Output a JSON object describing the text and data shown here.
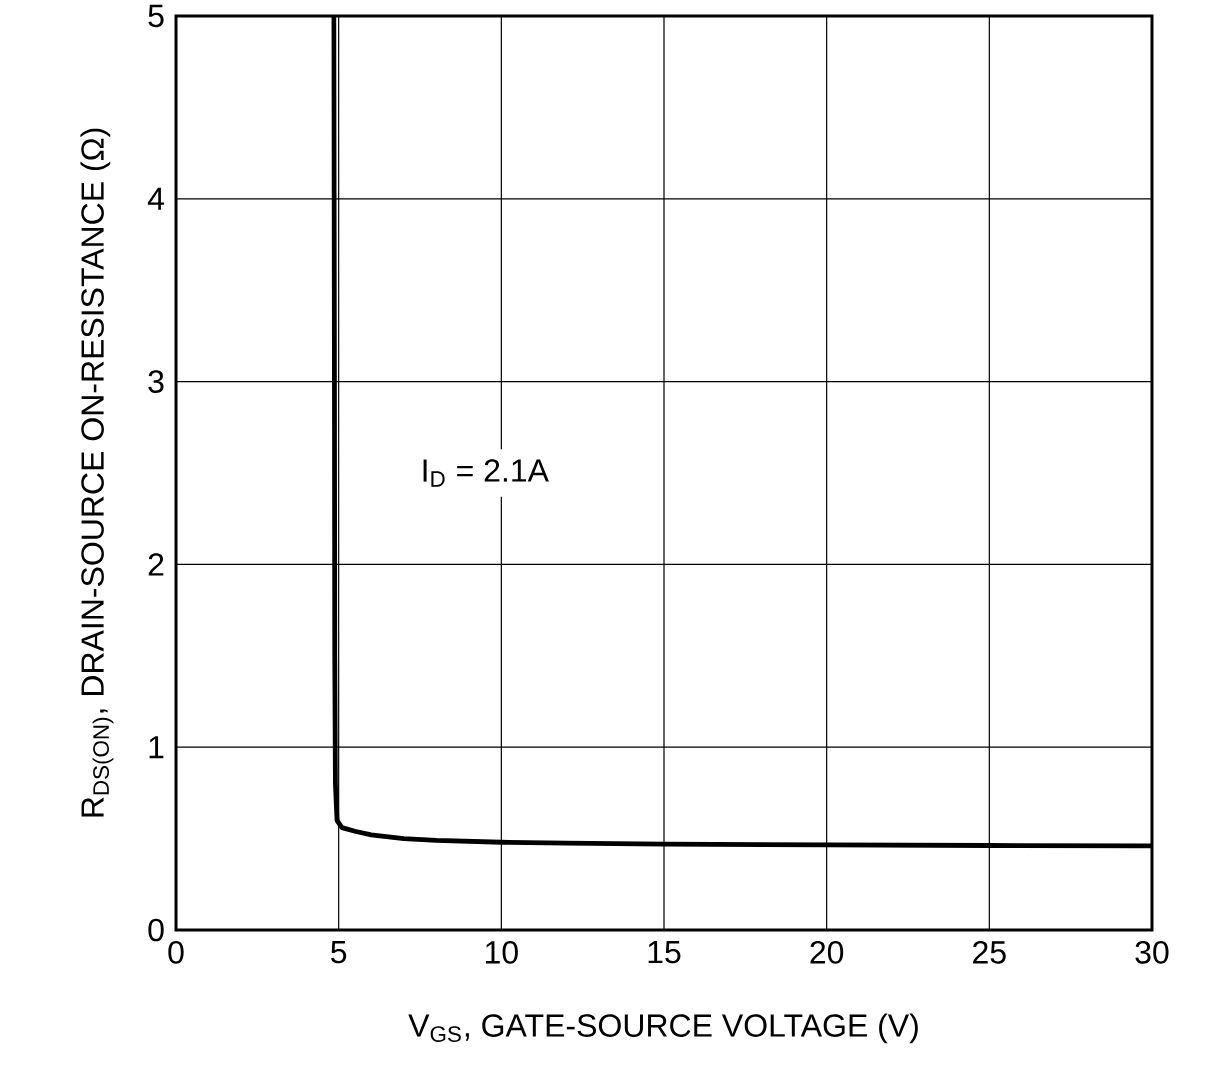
{
  "chart_data": {
    "type": "line",
    "xlabel": "V$_{GS}$, GATE-SOURCE VOLTAGE (V)",
    "ylabel": "R$_{DS(ON)}$, DRAIN-SOURCE ON-RESISTANCE (Ω)",
    "annotations": [
      "I$_{D}$ = 2.1A"
    ],
    "xlim": [
      0,
      30
    ],
    "ylim": [
      0,
      5
    ],
    "xticks": [
      0,
      5,
      10,
      15,
      20,
      25,
      30
    ],
    "yticks": [
      0,
      1,
      2,
      3,
      4,
      5
    ],
    "grid": true,
    "marker": "none",
    "line_style": "solid",
    "series": [
      {
        "color": "#000000",
        "x": [
          4.85,
          4.87,
          4.88,
          4.9,
          4.95,
          5.1,
          5.5,
          6,
          7,
          8,
          10,
          12,
          15,
          20,
          25,
          30
        ],
        "values": [
          5,
          3,
          1.5,
          0.8,
          0.6,
          0.56,
          0.54,
          0.52,
          0.5,
          0.49,
          0.48,
          0.475,
          0.47,
          0.465,
          0.462,
          0.46
        ]
      }
    ]
  }
}
